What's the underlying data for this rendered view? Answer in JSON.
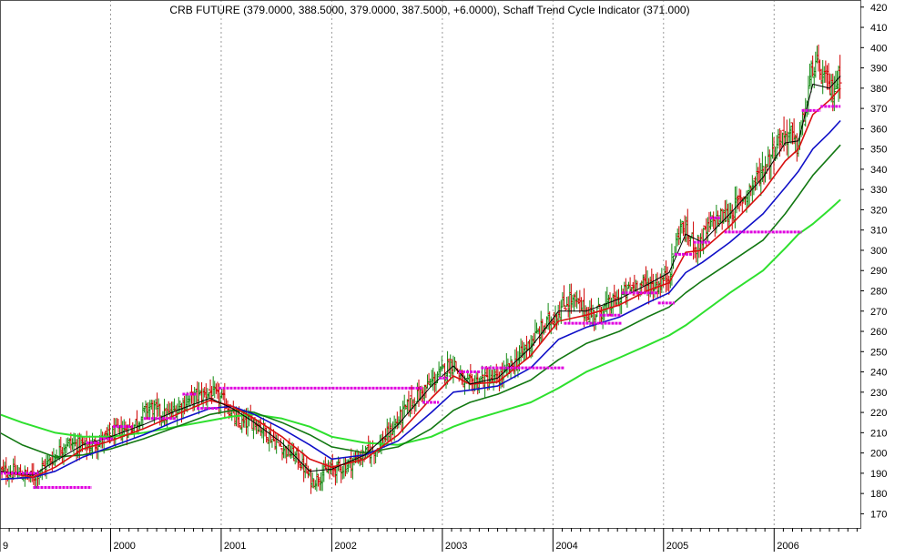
{
  "chart_data": {
    "type": "line",
    "title": "CRB FUTURE (379.0000, 388.5000, 379.0000, 387.5000, +6.0000), Schaff Trend Cycle Indicator (371.000)",
    "colors": {
      "background": "#ffffff",
      "grid": "#9a9a9a",
      "up_bar": "#128a12",
      "down_bar": "#d00000",
      "thin_line": "#000000",
      "ema_red": "#d81010",
      "ema_blue": "#1010c8",
      "ema_dkgreen": "#127812",
      "ema_ltgreen": "#2ee02e",
      "level_lines": "#e000e0"
    },
    "x_axis": {
      "labels": [
        "9",
        "2000",
        "2001",
        "2002",
        "2003",
        "2004",
        "2005",
        "2006"
      ],
      "label_x": [
        1999.0,
        2000.0,
        2001.0,
        2002.0,
        2003.0,
        2004.0,
        2005.0,
        2006.0
      ],
      "grid_x": [
        2000.0,
        2001.0,
        2002.0,
        2003.0,
        2004.0,
        2005.0,
        2006.0
      ],
      "range": [
        1999.0,
        2006.78
      ]
    },
    "y_axis": {
      "side": "right",
      "ticks": [
        170,
        180,
        190,
        200,
        210,
        220,
        230,
        240,
        250,
        260,
        270,
        280,
        290,
        300,
        310,
        320,
        330,
        340,
        350,
        360,
        370,
        380,
        390,
        400,
        410,
        420
      ],
      "range": [
        163,
        423.5
      ],
      "grid": false
    },
    "price_path": [
      [
        1999.0,
        191
      ],
      [
        1999.15,
        190
      ],
      [
        1999.3,
        188
      ],
      [
        1999.45,
        196
      ],
      [
        1999.6,
        205
      ],
      [
        1999.8,
        203
      ],
      [
        2000.05,
        210
      ],
      [
        2000.2,
        213
      ],
      [
        2000.35,
        223
      ],
      [
        2000.5,
        218
      ],
      [
        2000.7,
        226
      ],
      [
        2000.9,
        230
      ],
      [
        2001.05,
        224
      ],
      [
        2001.15,
        214
      ],
      [
        2001.3,
        216
      ],
      [
        2001.5,
        205
      ],
      [
        2001.7,
        197
      ],
      [
        2001.82,
        186
      ],
      [
        2001.95,
        191
      ],
      [
        2002.1,
        193
      ],
      [
        2002.25,
        198
      ],
      [
        2002.4,
        202
      ],
      [
        2002.55,
        212
      ],
      [
        2002.7,
        224
      ],
      [
        2002.85,
        232
      ],
      [
        2003.0,
        240
      ],
      [
        2003.1,
        245
      ],
      [
        2003.2,
        233
      ],
      [
        2003.35,
        236
      ],
      [
        2003.5,
        236
      ],
      [
        2003.65,
        244
      ],
      [
        2003.8,
        255
      ],
      [
        2003.95,
        264
      ],
      [
        2004.15,
        276
      ],
      [
        2004.35,
        268
      ],
      [
        2004.55,
        274
      ],
      [
        2004.75,
        283
      ],
      [
        2004.95,
        283
      ],
      [
        2005.05,
        288
      ],
      [
        2005.15,
        312
      ],
      [
        2005.3,
        302
      ],
      [
        2005.45,
        314
      ],
      [
        2005.6,
        318
      ],
      [
        2005.75,
        328
      ],
      [
        2005.9,
        340
      ],
      [
        2006.05,
        355
      ],
      [
        2006.15,
        358
      ],
      [
        2006.2,
        350
      ],
      [
        2006.28,
        368
      ],
      [
        2006.35,
        392
      ],
      [
        2006.45,
        385
      ],
      [
        2006.52,
        378
      ],
      [
        2006.58,
        385
      ],
      [
        2006.6,
        387.5
      ]
    ],
    "series": [
      {
        "color_key": "thin_line",
        "width": 1.0,
        "values": [
          [
            1999.0,
            191
          ],
          [
            1999.3,
            189
          ],
          [
            1999.5,
            196
          ],
          [
            1999.75,
            204
          ],
          [
            2000.0,
            208
          ],
          [
            2000.3,
            214
          ],
          [
            2000.6,
            221
          ],
          [
            2000.9,
            227
          ],
          [
            2001.1,
            222
          ],
          [
            2001.3,
            215
          ],
          [
            2001.55,
            205
          ],
          [
            2001.8,
            191
          ],
          [
            2002.0,
            192
          ],
          [
            2002.3,
            199
          ],
          [
            2002.6,
            214
          ],
          [
            2002.9,
            233
          ],
          [
            2003.1,
            243
          ],
          [
            2003.25,
            234
          ],
          [
            2003.5,
            237
          ],
          [
            2003.8,
            252
          ],
          [
            2004.05,
            270
          ],
          [
            2004.3,
            270
          ],
          [
            2004.6,
            276
          ],
          [
            2004.85,
            283
          ],
          [
            2005.05,
            289
          ],
          [
            2005.2,
            308
          ],
          [
            2005.35,
            304
          ],
          [
            2005.6,
            318
          ],
          [
            2005.9,
            336
          ],
          [
            2006.1,
            353
          ],
          [
            2006.22,
            354
          ],
          [
            2006.35,
            382
          ],
          [
            2006.5,
            380
          ],
          [
            2006.6,
            386
          ]
        ]
      },
      {
        "color_key": "ema_red",
        "width": 1.6,
        "values": [
          [
            1999.0,
            191
          ],
          [
            1999.3,
            188
          ],
          [
            1999.5,
            193
          ],
          [
            1999.75,
            202
          ],
          [
            2000.0,
            206
          ],
          [
            2000.3,
            212
          ],
          [
            2000.6,
            219
          ],
          [
            2000.9,
            226
          ],
          [
            2001.1,
            223
          ],
          [
            2001.3,
            217
          ],
          [
            2001.55,
            208
          ],
          [
            2001.8,
            197
          ],
          [
            2002.0,
            193
          ],
          [
            2002.3,
            197
          ],
          [
            2002.6,
            209
          ],
          [
            2002.9,
            227
          ],
          [
            2003.1,
            238
          ],
          [
            2003.25,
            234
          ],
          [
            2003.5,
            235
          ],
          [
            2003.8,
            248
          ],
          [
            2004.05,
            265
          ],
          [
            2004.3,
            268
          ],
          [
            2004.6,
            273
          ],
          [
            2004.85,
            280
          ],
          [
            2005.05,
            284
          ],
          [
            2005.2,
            299
          ],
          [
            2005.35,
            300
          ],
          [
            2005.6,
            312
          ],
          [
            2005.9,
            329
          ],
          [
            2006.1,
            344
          ],
          [
            2006.22,
            350
          ],
          [
            2006.35,
            367
          ],
          [
            2006.5,
            374
          ],
          [
            2006.6,
            380
          ]
        ]
      },
      {
        "color_key": "ema_blue",
        "width": 1.6,
        "values": [
          [
            1999.0,
            187
          ],
          [
            1999.3,
            188
          ],
          [
            1999.5,
            191
          ],
          [
            1999.75,
            198
          ],
          [
            2000.0,
            203
          ],
          [
            2000.3,
            209
          ],
          [
            2000.6,
            216
          ],
          [
            2000.9,
            222
          ],
          [
            2001.1,
            223
          ],
          [
            2001.3,
            219
          ],
          [
            2001.55,
            212
          ],
          [
            2001.8,
            204
          ],
          [
            2002.0,
            197
          ],
          [
            2002.3,
            199
          ],
          [
            2002.6,
            206
          ],
          [
            2002.9,
            220
          ],
          [
            2003.1,
            230
          ],
          [
            2003.25,
            231
          ],
          [
            2003.5,
            233
          ],
          [
            2003.8,
            242
          ],
          [
            2004.05,
            256
          ],
          [
            2004.3,
            262
          ],
          [
            2004.6,
            267
          ],
          [
            2004.85,
            274
          ],
          [
            2005.05,
            279
          ],
          [
            2005.2,
            289
          ],
          [
            2005.35,
            294
          ],
          [
            2005.6,
            304
          ],
          [
            2005.9,
            318
          ],
          [
            2006.1,
            331
          ],
          [
            2006.22,
            339
          ],
          [
            2006.35,
            350
          ],
          [
            2006.5,
            358
          ],
          [
            2006.6,
            364
          ]
        ]
      },
      {
        "color_key": "ema_dkgreen",
        "width": 1.6,
        "values": [
          [
            1999.0,
            210
          ],
          [
            1999.2,
            204
          ],
          [
            1999.5,
            198
          ],
          [
            1999.75,
            199
          ],
          [
            2000.0,
            202
          ],
          [
            2000.3,
            207
          ],
          [
            2000.6,
            213
          ],
          [
            2000.9,
            219
          ],
          [
            2001.1,
            221
          ],
          [
            2001.3,
            220
          ],
          [
            2001.55,
            215
          ],
          [
            2001.8,
            209
          ],
          [
            2002.0,
            203
          ],
          [
            2002.3,
            200
          ],
          [
            2002.6,
            203
          ],
          [
            2002.9,
            212
          ],
          [
            2003.1,
            221
          ],
          [
            2003.25,
            225
          ],
          [
            2003.5,
            229
          ],
          [
            2003.8,
            236
          ],
          [
            2004.05,
            246
          ],
          [
            2004.3,
            254
          ],
          [
            2004.6,
            260
          ],
          [
            2004.85,
            267
          ],
          [
            2005.05,
            272
          ],
          [
            2005.2,
            279
          ],
          [
            2005.35,
            285
          ],
          [
            2005.6,
            294
          ],
          [
            2005.9,
            305
          ],
          [
            2006.1,
            318
          ],
          [
            2006.22,
            327
          ],
          [
            2006.35,
            337
          ],
          [
            2006.5,
            346
          ],
          [
            2006.6,
            352
          ]
        ]
      },
      {
        "color_key": "ema_ltgreen",
        "width": 2.0,
        "values": [
          [
            1999.0,
            219
          ],
          [
            1999.2,
            215
          ],
          [
            1999.5,
            210
          ],
          [
            1999.75,
            208
          ],
          [
            2000.0,
            208
          ],
          [
            2000.3,
            210
          ],
          [
            2000.6,
            213
          ],
          [
            2000.9,
            216
          ],
          [
            2001.1,
            218
          ],
          [
            2001.3,
            219
          ],
          [
            2001.55,
            217
          ],
          [
            2001.8,
            213
          ],
          [
            2002.0,
            208
          ],
          [
            2002.3,
            205
          ],
          [
            2002.6,
            204
          ],
          [
            2002.9,
            208
          ],
          [
            2003.1,
            213
          ],
          [
            2003.25,
            216
          ],
          [
            2003.5,
            220
          ],
          [
            2003.8,
            225
          ],
          [
            2004.05,
            232
          ],
          [
            2004.3,
            240
          ],
          [
            2004.6,
            247
          ],
          [
            2004.85,
            253
          ],
          [
            2005.05,
            258
          ],
          [
            2005.2,
            263
          ],
          [
            2005.35,
            269
          ],
          [
            2005.6,
            279
          ],
          [
            2005.9,
            290
          ],
          [
            2006.1,
            301
          ],
          [
            2006.22,
            308
          ],
          [
            2006.35,
            313
          ],
          [
            2006.5,
            320
          ],
          [
            2006.6,
            325
          ]
        ]
      }
    ],
    "level_segments": [
      [
        1999.0,
        1999.35,
        190
      ],
      [
        1999.3,
        1999.83,
        183
      ],
      [
        1999.78,
        1999.9,
        205
      ],
      [
        1999.9,
        2000.02,
        207
      ],
      [
        2000.02,
        2000.2,
        213
      ],
      [
        2000.3,
        2000.6,
        217
      ],
      [
        2000.65,
        2000.78,
        229
      ],
      [
        2000.78,
        2000.98,
        222
      ],
      [
        2000.98,
        2002.82,
        232
      ],
      [
        2002.82,
        2002.97,
        225
      ],
      [
        2002.97,
        2003.05,
        237
      ],
      [
        2003.15,
        2003.35,
        240
      ],
      [
        2003.35,
        2004.1,
        242
      ],
      [
        2004.1,
        2004.62,
        264
      ],
      [
        2004.42,
        2004.62,
        268
      ],
      [
        2004.62,
        2004.95,
        279
      ],
      [
        2004.95,
        2005.1,
        274
      ],
      [
        2005.1,
        2005.27,
        298
      ],
      [
        2005.27,
        2005.42,
        304
      ],
      [
        2005.42,
        2005.52,
        316
      ],
      [
        2005.55,
        2006.25,
        309
      ],
      [
        2006.25,
        2006.42,
        369
      ],
      [
        2006.42,
        2006.6,
        371
      ]
    ]
  }
}
